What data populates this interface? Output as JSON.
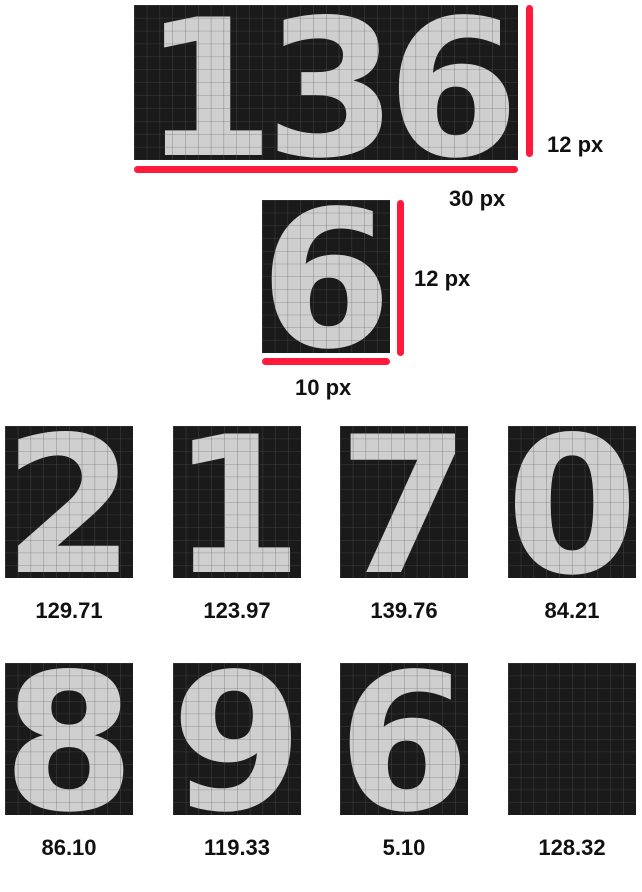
{
  "colors": {
    "accent": "#ff1a3c",
    "cell_dark": "#1a1a1a",
    "cell_mid": "#7a7a7a",
    "cell_light": "#cfcfcf",
    "grid": "#5a5a5a"
  },
  "sequence": {
    "text": "136",
    "width_label": "30 px",
    "height_label": "12 px"
  },
  "single_digit": {
    "text": "6",
    "width_label": "10 px",
    "height_label": "12 px"
  },
  "samples": [
    {
      "digit": "2",
      "score": "129.71"
    },
    {
      "digit": "1",
      "score": "123.97"
    },
    {
      "digit": "7",
      "score": "139.76"
    },
    {
      "digit": "0",
      "score": "84.21"
    },
    {
      "digit": "8",
      "score": "86.10"
    },
    {
      "digit": "9",
      "score": "119.33"
    },
    {
      "digit": "6",
      "score": "5.10"
    },
    {
      "digit": "",
      "score": "128.32"
    }
  ]
}
